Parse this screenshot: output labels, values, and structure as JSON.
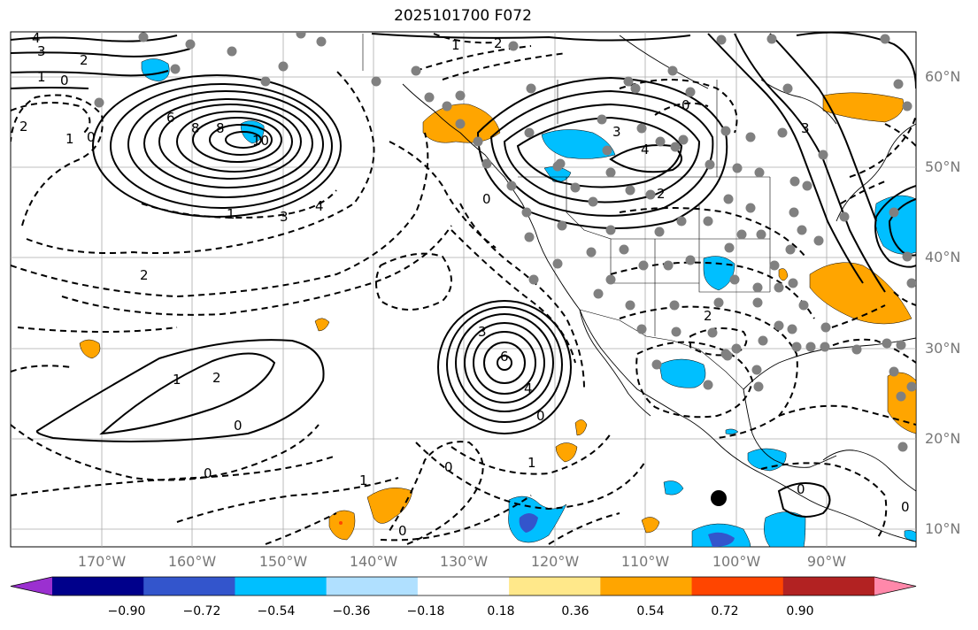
{
  "title": "2025101700 F072",
  "lat_labels": [
    "60°N",
    "50°N",
    "40°N",
    "30°N",
    "20°N",
    "10°N"
  ],
  "lon_labels": [
    "170°W",
    "160°W",
    "150°W",
    "140°W",
    "130°W",
    "120°W",
    "110°W",
    "100°W",
    "90°W"
  ],
  "colorbar": {
    "colors": [
      "#9b30d0",
      "#00008b",
      "#3355cc",
      "#00bfff",
      "#b0e0ff",
      "#ffffff",
      "#ffe88a",
      "#ffa500",
      "#ff4500",
      "#b22222",
      "#ff88aa"
    ],
    "tick_labels": [
      "−0.90",
      "−0.72",
      "−0.54",
      "−0.36",
      "−0.18",
      "0.18",
      "0.36",
      "0.54",
      "0.72",
      "0.90"
    ]
  },
  "contour_labels": [
    {
      "text": "4",
      "key": "nw-4"
    },
    {
      "text": "3",
      "key": "nw-3"
    },
    {
      "text": "2",
      "key": "nw-2"
    },
    {
      "text": "1",
      "key": "nw-1"
    },
    {
      "text": "0",
      "key": "nw-0"
    },
    {
      "text": "8",
      "key": "low-8a"
    },
    {
      "text": "8",
      "key": "low-8b"
    },
    {
      "text": "10",
      "key": "low-10"
    },
    {
      "text": "6",
      "key": "low-6"
    },
    {
      "text": "1",
      "key": "low-1"
    },
    {
      "text": "3",
      "key": "low-3"
    },
    {
      "text": "4",
      "key": "low-4"
    },
    {
      "text": "2",
      "key": "west-2"
    },
    {
      "text": "1",
      "key": "west-1"
    },
    {
      "text": "0",
      "key": "west-0"
    },
    {
      "text": "2",
      "key": "sw-2"
    },
    {
      "text": "1",
      "key": "sw-1"
    },
    {
      "text": "2",
      "key": "sw-2b"
    },
    {
      "text": "0",
      "key": "sw-0"
    },
    {
      "text": "0",
      "key": "sw-0b"
    },
    {
      "text": "6",
      "key": "sub-6"
    },
    {
      "text": "4",
      "key": "sub-4"
    },
    {
      "text": "3",
      "key": "sub-3"
    },
    {
      "text": "0",
      "key": "sub-0"
    },
    {
      "text": "1",
      "key": "sub-1"
    },
    {
      "text": "0",
      "key": "sub-0b"
    },
    {
      "text": "1",
      "key": "s-1"
    },
    {
      "text": "0",
      "key": "s-0"
    },
    {
      "text": "3",
      "key": "can-3"
    },
    {
      "text": "4",
      "key": "can-4"
    },
    {
      "text": "2",
      "key": "can-2"
    },
    {
      "text": "0",
      "key": "can-0"
    },
    {
      "text": "1",
      "key": "n-1"
    },
    {
      "text": "2",
      "key": "n-2"
    },
    {
      "text": "0",
      "key": "n-0"
    },
    {
      "text": "3",
      "key": "e-3"
    },
    {
      "text": "0",
      "key": "e-0"
    },
    {
      "text": "2",
      "key": "us-2"
    },
    {
      "text": "0",
      "key": "us-0"
    }
  ]
}
